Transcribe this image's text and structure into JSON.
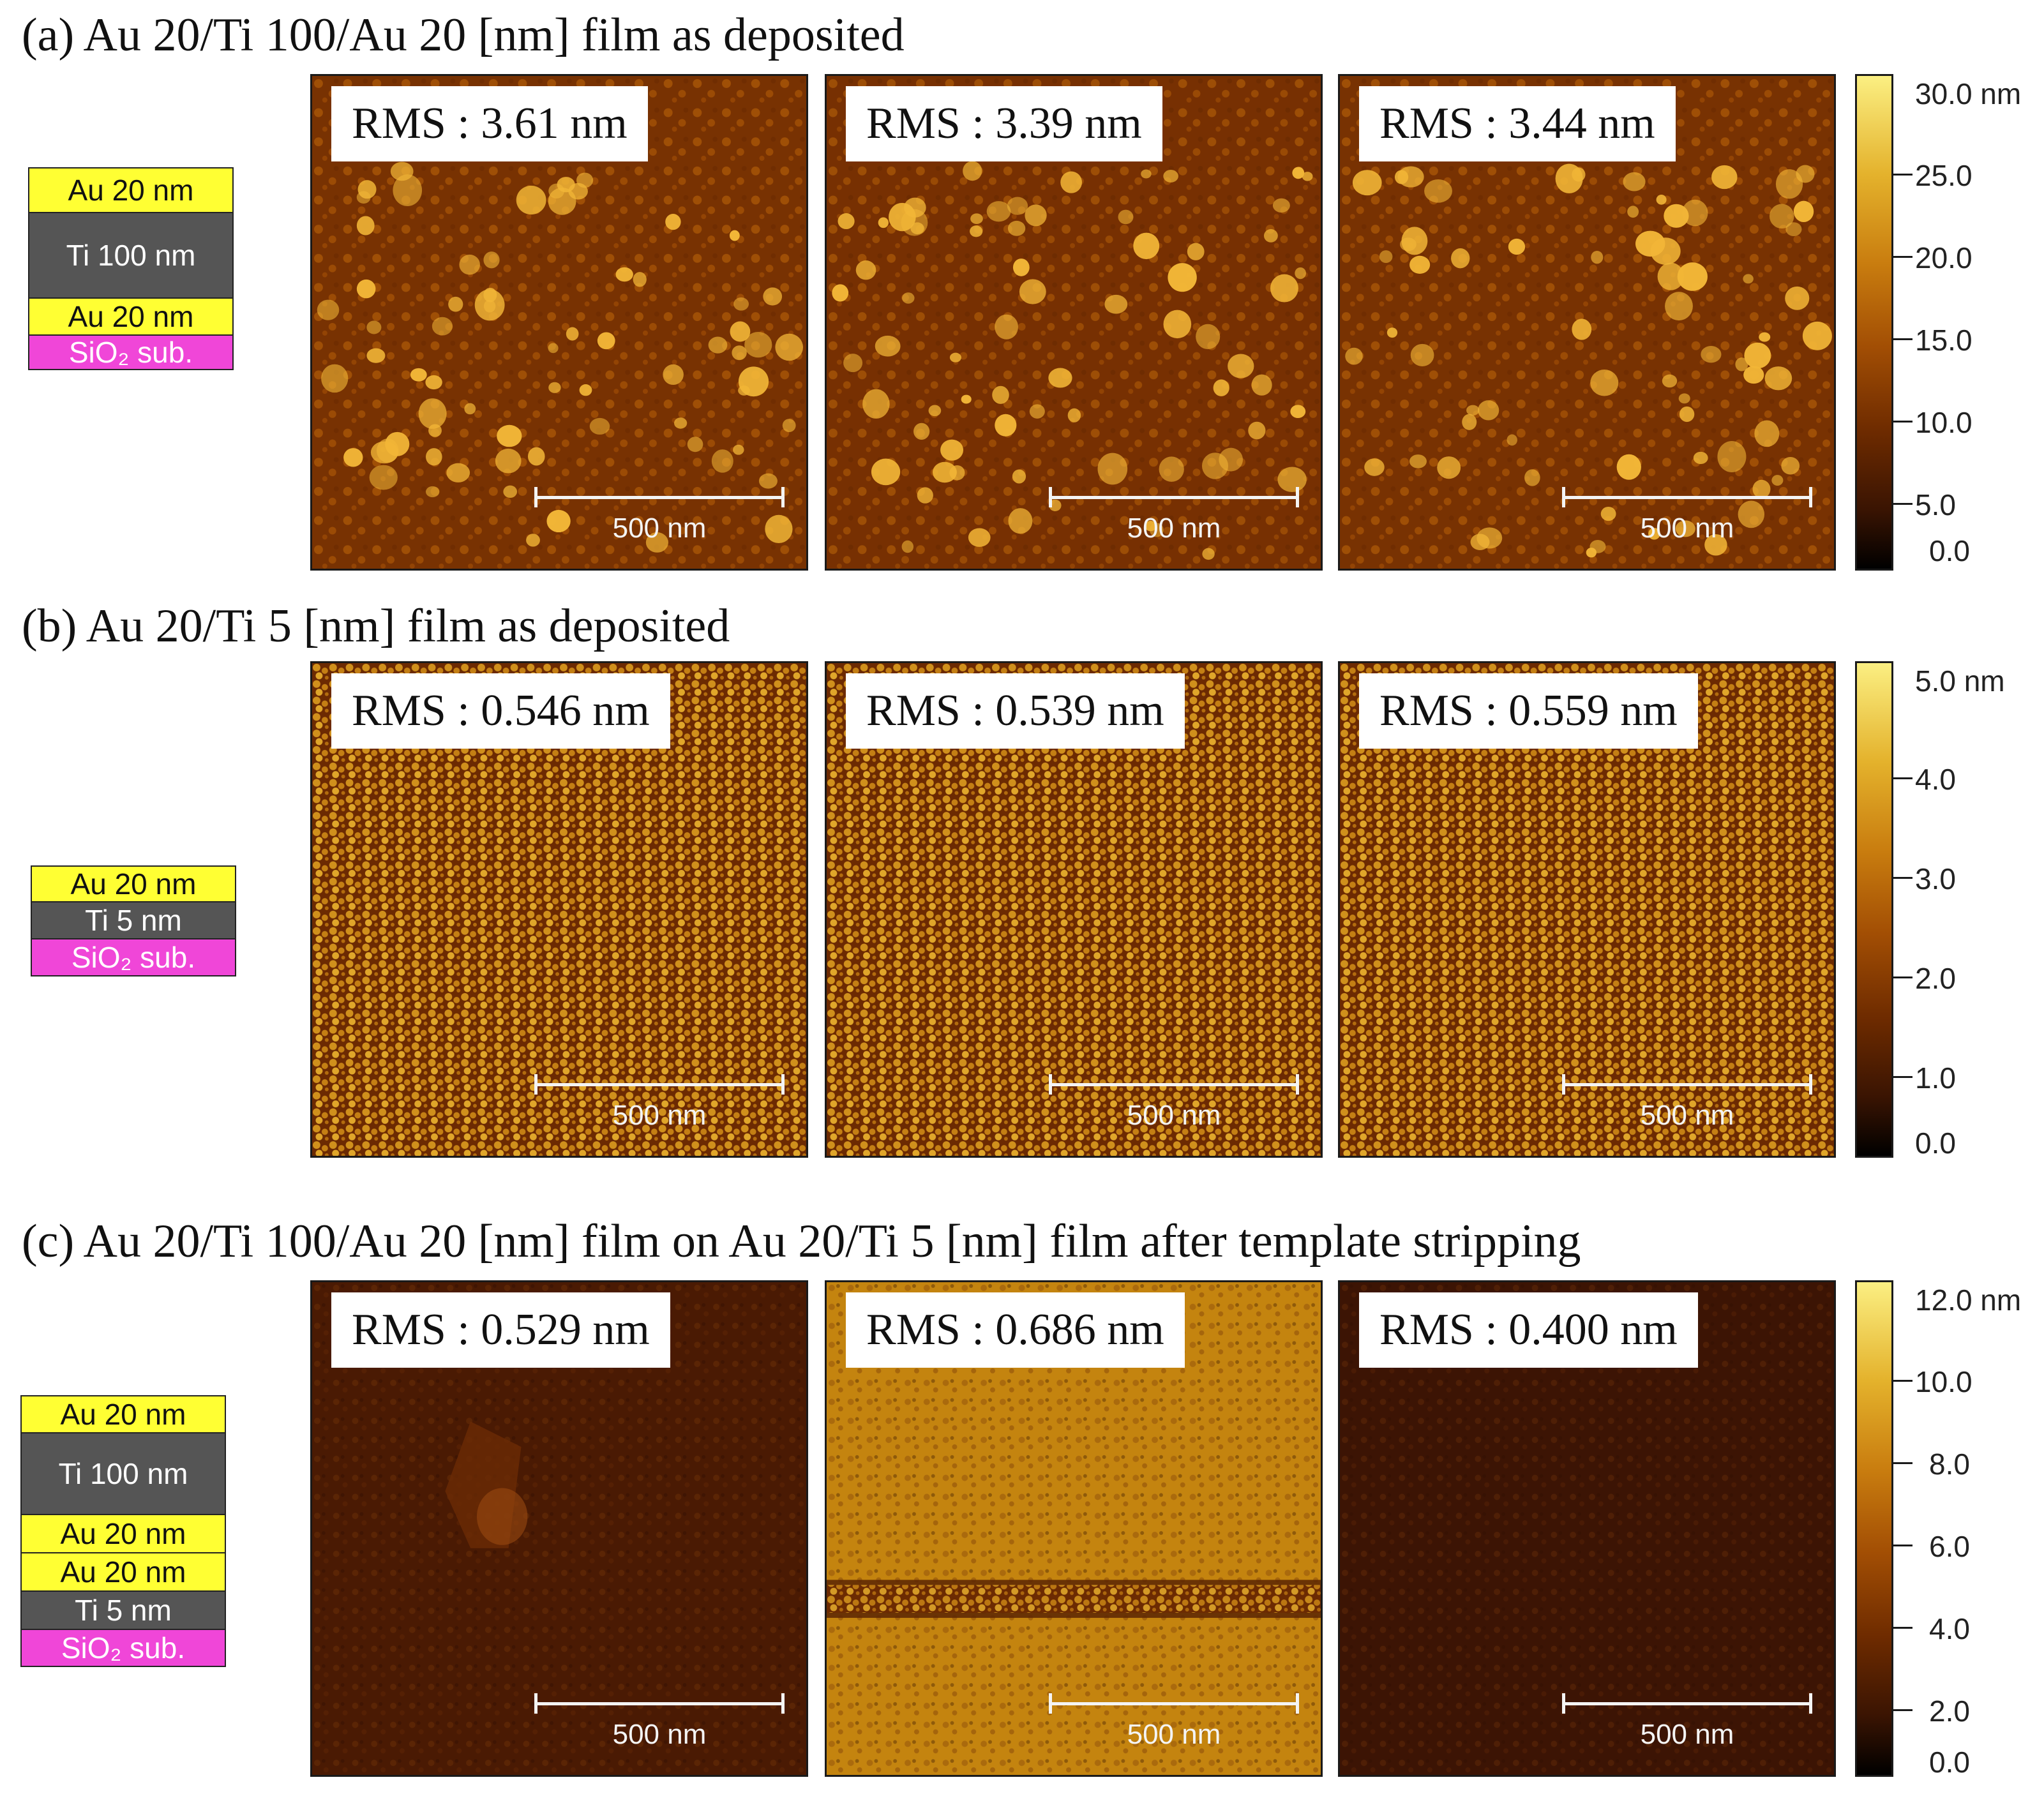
{
  "panels": [
    {
      "title": "(a) Au 20/Ti 100/Au 20 [nm] film as deposited",
      "images": [
        {
          "rms": "RMS : 3.61 nm",
          "scale": "500 nm"
        },
        {
          "rms": "RMS : 3.39 nm",
          "scale": "500 nm"
        },
        {
          "rms": "RMS : 3.44 nm",
          "scale": "500 nm"
        }
      ],
      "colorbar": {
        "top_label": "30.0 nm",
        "ticks": [
          "25.0",
          "20.0",
          "15.0",
          "10.0",
          "5.0",
          "0.0"
        ]
      },
      "stack": [
        {
          "label": "Au 20 nm",
          "material": "au"
        },
        {
          "label": "Ti 100 nm",
          "material": "ti"
        },
        {
          "label": "Au 20 nm",
          "material": "au"
        },
        {
          "label": "SiO₂ sub.",
          "material": "sio"
        }
      ]
    },
    {
      "title": "(b) Au 20/Ti 5 [nm] film as deposited",
      "images": [
        {
          "rms": "RMS : 0.546 nm",
          "scale": "500 nm"
        },
        {
          "rms": "RMS : 0.539 nm",
          "scale": "500 nm"
        },
        {
          "rms": "RMS : 0.559 nm",
          "scale": "500 nm"
        }
      ],
      "colorbar": {
        "top_label": "5.0 nm",
        "ticks": [
          "4.0",
          "3.0",
          "2.0",
          "1.0",
          "0.0"
        ]
      },
      "stack": [
        {
          "label": "Au 20 nm",
          "material": "au"
        },
        {
          "label": "Ti 5 nm",
          "material": "ti"
        },
        {
          "label": "SiO₂ sub.",
          "material": "sio"
        }
      ]
    },
    {
      "title": "(c) Au 20/Ti 100/Au 20 [nm] film on Au 20/Ti 5 [nm] film after template stripping",
      "images": [
        {
          "rms": "RMS : 0.529 nm",
          "scale": "500 nm"
        },
        {
          "rms": "RMS : 0.686 nm",
          "scale": "500 nm"
        },
        {
          "rms": "RMS : 0.400 nm",
          "scale": "500 nm"
        }
      ],
      "colorbar": {
        "top_label": "12.0 nm",
        "ticks": [
          "10.0",
          "8.0",
          "6.0",
          "4.0",
          "2.0",
          "0.0"
        ]
      },
      "stack": [
        {
          "label": "Au 20 nm",
          "material": "au"
        },
        {
          "label": "Ti 100 nm",
          "material": "ti"
        },
        {
          "label": "Au 20 nm",
          "material": "au"
        },
        {
          "label": "Au 20 nm",
          "material": "au"
        },
        {
          "label": "Ti 5 nm",
          "material": "ti"
        },
        {
          "label": "SiO₂ sub.",
          "material": "sio"
        }
      ]
    }
  ],
  "colors": {
    "au": "#ffff33",
    "ti": "#555555",
    "sio": "#f046d8",
    "frame": "#1a1a1a"
  }
}
